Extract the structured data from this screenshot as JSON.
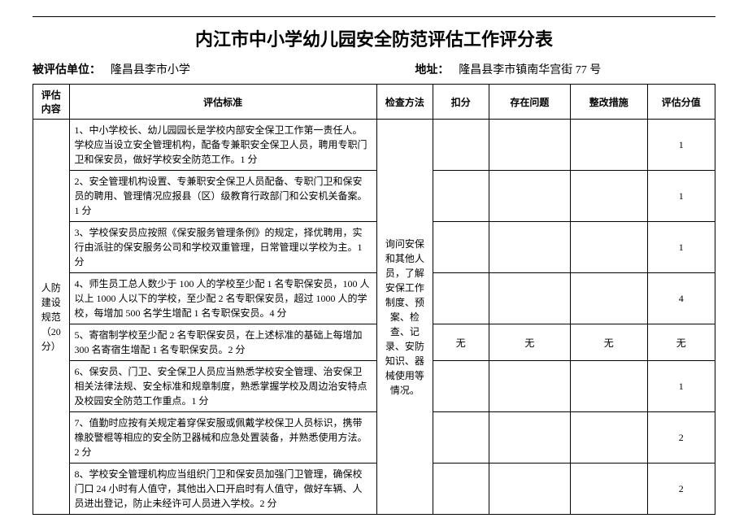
{
  "title": "内江市中小学幼儿园安全防范评估工作评分表",
  "meta": {
    "unit_label": "被评估单位：",
    "unit_value": "隆昌县李市小学",
    "addr_label": "地址：",
    "addr_value": "隆昌县李市镇南华宫街 77 号"
  },
  "headers": {
    "c1": "评估内容",
    "c2": "评估标准",
    "c3": "检查方法",
    "c4": "扣分",
    "c5": "存在问题",
    "c6": "整改措施",
    "c7": "评估分值"
  },
  "category": "人防建设规范（20分）",
  "method": "询问安保和其他人员，了解安保工作制度、预案、检查、记录、安防知识、器械使用等情况。",
  "rows": [
    {
      "std": "1、中小学校长、幼儿园园长是学校内部安全保卫工作第一责任人。学校应当设立安全管理机构，配备专兼职安全保卫人员，聘用专职门卫和保安员，做好学校安全防范工作。1 分",
      "deduct": "",
      "problem": "",
      "fix": "",
      "score": "1"
    },
    {
      "std": "2、安全管理机构设置、专兼职安全保卫人员配备、专职门卫和保安员的聘用、管理情况应报县（区）级教育行政部门和公安机关备案。1 分",
      "deduct": "",
      "problem": "",
      "fix": "",
      "score": "1"
    },
    {
      "std": "3、学校保安员应按照《保安服务管理条例》的规定，择优聘用，实行由派驻的保安服务公司和学校双重管理，日常管理以学校为主。1 分",
      "deduct": "",
      "problem": "",
      "fix": "",
      "score": "1"
    },
    {
      "std": "4、师生员工总人数少于 100 人的学校至少配 1 名专职保安员，100 人以上 1000 人以下的学校，至少配 2 名专职保安员，超过 1000 人的学校，每增加 500 名学生增配 1 名专职保安员。4 分",
      "deduct": "",
      "problem": "",
      "fix": "",
      "score": "4"
    },
    {
      "std": "5、寄宿制学校至少配 2 名专职保安员，在上述标准的基础上每增加 300 名寄宿生增配 1 名专职保安员。2 分",
      "deduct": "无",
      "problem": "无",
      "fix": "无",
      "score": "无"
    },
    {
      "std": "6、保安员、门卫、安全保卫人员应当熟悉学校安全管理、治安保卫相关法律法规、安全标准和规章制度，熟悉掌握学校及周边治安特点及校园安全防范工作重点。1 分",
      "deduct": "",
      "problem": "",
      "fix": "",
      "score": "1"
    },
    {
      "std": "7、值勤时应按有关规定着穿保安服或佩戴学校保卫人员标识，携带橡胶警棍等相应的安全防卫器械和应急处置装备，并熟悉使用方法。2 分",
      "deduct": "",
      "problem": "",
      "fix": "",
      "score": "2"
    },
    {
      "std": "8、学校安全管理机构应当组织门卫和保安员加强门卫管理，确保校门口 24 小时有人值守，其他出入口开启时有人值守，做好车辆、人员进出登记，防止未经许可人员进入学校。2 分",
      "deduct": "",
      "problem": "",
      "fix": "",
      "score": "2"
    }
  ]
}
